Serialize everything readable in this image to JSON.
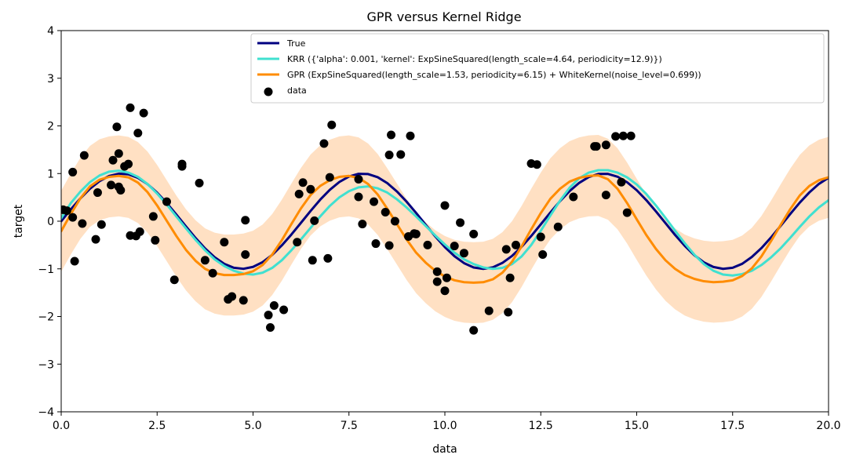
{
  "chart_data": {
    "type": "line",
    "title": "GPR versus Kernel Ridge",
    "xlabel": "data",
    "ylabel": "target",
    "xlim": [
      0,
      20
    ],
    "ylim": [
      -4,
      4
    ],
    "grid": false,
    "legend_placement": "top-right",
    "x_ticks": [
      0,
      2.5,
      5,
      7.5,
      10,
      12.5,
      15,
      17.5,
      20
    ],
    "x_tick_labels": [
      "0.0",
      "2.5",
      "5.0",
      "7.5",
      "10.0",
      "12.5",
      "15.0",
      "17.5",
      "20.0"
    ],
    "y_ticks": [
      -4,
      -3,
      -2,
      -1,
      0,
      1,
      2,
      3,
      4
    ],
    "y_tick_labels": [
      "−4",
      "−3",
      "−2",
      "−1",
      "0",
      "1",
      "2",
      "3",
      "4"
    ],
    "colors": {
      "true": "#000080",
      "krr": "#40e0d0",
      "gpr": "#ff8c00",
      "band": "#ffdab9",
      "data": "#000000"
    },
    "series": [
      {
        "name": "True",
        "kind": "line",
        "color": "#000080",
        "x": [
          0,
          0.25,
          0.5,
          0.75,
          1,
          1.25,
          1.5,
          1.75,
          2,
          2.25,
          2.5,
          2.75,
          3,
          3.25,
          3.5,
          3.75,
          4,
          4.25,
          4.5,
          4.75,
          5,
          5.25,
          5.5,
          5.75,
          6,
          6.25,
          6.5,
          6.75,
          7,
          7.25,
          7.5,
          7.75,
          8,
          8.25,
          8.5,
          8.75,
          9,
          9.25,
          9.5,
          9.75,
          10,
          10.25,
          10.5,
          10.75,
          11,
          11.25,
          11.5,
          11.75,
          12,
          12.25,
          12.5,
          12.75,
          13,
          13.25,
          13.5,
          13.75,
          14,
          14.25,
          14.5,
          14.75,
          15,
          15.25,
          15.5,
          15.75,
          16,
          16.25,
          16.5,
          16.75,
          17,
          17.25,
          17.5,
          17.75,
          18,
          18.25,
          18.5,
          18.75,
          19,
          19.25,
          19.5,
          19.75,
          20
        ],
        "y": [
          0.0,
          0.247,
          0.479,
          0.682,
          0.841,
          0.949,
          0.997,
          0.984,
          0.909,
          0.778,
          0.598,
          0.382,
          0.141,
          -0.108,
          -0.351,
          -0.572,
          -0.757,
          -0.895,
          -0.978,
          -0.999,
          -0.959,
          -0.859,
          -0.706,
          -0.508,
          -0.279,
          -0.033,
          0.215,
          0.451,
          0.657,
          0.823,
          0.938,
          0.994,
          0.989,
          0.923,
          0.798,
          0.624,
          0.412,
          0.174,
          -0.075,
          -0.319,
          -0.544,
          -0.735,
          -0.88,
          -0.971,
          -1.0,
          -0.968,
          -0.875,
          -0.729,
          -0.537,
          -0.311,
          -0.066,
          0.182,
          0.42,
          0.631,
          0.804,
          0.927,
          0.991,
          0.993,
          0.934,
          0.817,
          0.65,
          0.442,
          0.207,
          -0.041,
          -0.288,
          -0.515,
          -0.712,
          -0.863,
          -0.961,
          -1.0,
          -0.977,
          -0.894,
          -0.751,
          -0.565,
          -0.342,
          -0.099,
          0.15,
          0.39,
          0.604,
          0.783,
          0.913
        ]
      },
      {
        "name": "KRR ({'alpha': 0.001, 'kernel': ExpSineSquared(length_scale=4.64, periodicity=12.9)})",
        "kind": "line",
        "color": "#40e0d0",
        "x": [
          0,
          0.25,
          0.5,
          0.75,
          1,
          1.25,
          1.5,
          1.75,
          2,
          2.25,
          2.5,
          2.75,
          3,
          3.25,
          3.5,
          3.75,
          4,
          4.25,
          4.5,
          4.75,
          5,
          5.25,
          5.5,
          5.75,
          6,
          6.25,
          6.5,
          6.75,
          7,
          7.25,
          7.5,
          7.75,
          8,
          8.25,
          8.5,
          8.75,
          9,
          9.25,
          9.5,
          9.75,
          10,
          10.25,
          10.5,
          10.75,
          11,
          11.25,
          11.5,
          11.75,
          12,
          12.25,
          12.5,
          12.75,
          13,
          13.25,
          13.5,
          13.75,
          14,
          14.25,
          14.5,
          14.75,
          15,
          15.25,
          15.5,
          15.75,
          16,
          16.25,
          16.5,
          16.75,
          17,
          17.25,
          17.5,
          17.75,
          18,
          18.25,
          18.5,
          18.75,
          19,
          19.25,
          19.5,
          19.75,
          20
        ],
        "y": [
          0.06,
          0.38,
          0.62,
          0.82,
          0.96,
          1.04,
          1.06,
          1.02,
          0.93,
          0.78,
          0.58,
          0.35,
          0.1,
          -0.15,
          -0.39,
          -0.61,
          -0.8,
          -0.94,
          -1.04,
          -1.1,
          -1.12,
          -1.08,
          -0.98,
          -0.82,
          -0.61,
          -0.38,
          -0.14,
          0.1,
          0.32,
          0.5,
          0.63,
          0.71,
          0.73,
          0.69,
          0.6,
          0.46,
          0.29,
          0.1,
          -0.1,
          -0.3,
          -0.49,
          -0.66,
          -0.8,
          -0.9,
          -0.97,
          -1.0,
          -0.98,
          -0.9,
          -0.74,
          -0.5,
          -0.2,
          0.12,
          0.43,
          0.7,
          0.9,
          1.02,
          1.07,
          1.07,
          1.02,
          0.92,
          0.77,
          0.57,
          0.33,
          0.07,
          -0.2,
          -0.46,
          -0.7,
          -0.9,
          -1.04,
          -1.12,
          -1.14,
          -1.11,
          -1.04,
          -0.92,
          -0.76,
          -0.57,
          -0.35,
          -0.12,
          0.1,
          0.29,
          0.44
        ]
      },
      {
        "name": "GPR (ExpSineSquared(length_scale=1.53, periodicity=6.15) + WhiteKernel(noise_level=0.699))",
        "kind": "line",
        "color": "#ff8c00",
        "x": [
          0,
          0.25,
          0.5,
          0.75,
          1,
          1.25,
          1.5,
          1.75,
          2,
          2.25,
          2.5,
          2.75,
          3,
          3.25,
          3.5,
          3.75,
          4,
          4.25,
          4.5,
          4.75,
          5,
          5.25,
          5.5,
          5.75,
          6,
          6.25,
          6.5,
          6.75,
          7,
          7.25,
          7.5,
          7.75,
          8,
          8.25,
          8.5,
          8.75,
          9,
          9.25,
          9.5,
          9.75,
          10,
          10.25,
          10.5,
          10.75,
          11,
          11.25,
          11.5,
          11.75,
          12,
          12.25,
          12.5,
          12.75,
          13,
          13.25,
          13.5,
          13.75,
          14,
          14.25,
          14.5,
          14.75,
          15,
          15.25,
          15.5,
          15.75,
          16,
          16.25,
          16.5,
          16.75,
          17,
          17.25,
          17.5,
          17.75,
          18,
          18.25,
          18.5,
          18.75,
          19,
          19.25,
          19.5,
          19.75,
          20
        ],
        "y": [
          -0.21,
          0.15,
          0.48,
          0.73,
          0.87,
          0.93,
          0.95,
          0.92,
          0.81,
          0.61,
          0.33,
          0.01,
          -0.31,
          -0.6,
          -0.83,
          -1.0,
          -1.09,
          -1.13,
          -1.13,
          -1.11,
          -1.05,
          -0.92,
          -0.7,
          -0.4,
          -0.06,
          0.27,
          0.55,
          0.74,
          0.86,
          0.93,
          0.95,
          0.91,
          0.78,
          0.56,
          0.26,
          -0.06,
          -0.38,
          -0.66,
          -0.87,
          -1.04,
          -1.16,
          -1.24,
          -1.28,
          -1.29,
          -1.28,
          -1.22,
          -1.08,
          -0.85,
          -0.53,
          -0.17,
          0.17,
          0.47,
          0.68,
          0.83,
          0.91,
          0.95,
          0.96,
          0.88,
          0.68,
          0.38,
          0.04,
          -0.29,
          -0.58,
          -0.82,
          -1.0,
          -1.13,
          -1.21,
          -1.26,
          -1.28,
          -1.27,
          -1.24,
          -1.15,
          -0.99,
          -0.74,
          -0.42,
          -0.08,
          0.25,
          0.54,
          0.74,
          0.86,
          0.92
        ]
      },
      {
        "name": "data",
        "kind": "scatter",
        "color": "#000000",
        "points": [
          [
            0.05,
            0.24
          ],
          [
            0.15,
            0.22
          ],
          [
            0.3,
            1.03
          ],
          [
            0.3,
            0.08
          ],
          [
            0.35,
            -0.84
          ],
          [
            0.55,
            -0.05
          ],
          [
            0.6,
            1.38
          ],
          [
            0.9,
            -0.38
          ],
          [
            0.95,
            0.6
          ],
          [
            1.05,
            -0.07
          ],
          [
            1.3,
            0.76
          ],
          [
            1.35,
            1.28
          ],
          [
            1.45,
            1.98
          ],
          [
            1.5,
            1.42
          ],
          [
            1.5,
            0.72
          ],
          [
            1.55,
            0.65
          ],
          [
            1.65,
            1.15
          ],
          [
            1.75,
            1.2
          ],
          [
            1.8,
            2.38
          ],
          [
            1.8,
            -0.3
          ],
          [
            1.95,
            -0.31
          ],
          [
            2.0,
            1.85
          ],
          [
            2.05,
            -0.22
          ],
          [
            2.15,
            2.27
          ],
          [
            2.4,
            0.1
          ],
          [
            2.45,
            -0.4
          ],
          [
            2.75,
            0.41
          ],
          [
            2.95,
            -1.23
          ],
          [
            3.15,
            1.15
          ],
          [
            3.15,
            1.2
          ],
          [
            3.6,
            0.8
          ],
          [
            3.75,
            -0.82
          ],
          [
            3.95,
            -1.09
          ],
          [
            4.25,
            -0.44
          ],
          [
            4.35,
            -1.64
          ],
          [
            4.45,
            -1.58
          ],
          [
            4.75,
            -1.66
          ],
          [
            4.8,
            0.02
          ],
          [
            4.8,
            -0.7
          ],
          [
            5.4,
            -1.97
          ],
          [
            5.45,
            -2.23
          ],
          [
            5.55,
            -1.77
          ],
          [
            5.8,
            -1.86
          ],
          [
            6.15,
            -0.44
          ],
          [
            6.2,
            0.57
          ],
          [
            6.3,
            0.81
          ],
          [
            6.5,
            0.67
          ],
          [
            6.55,
            -0.82
          ],
          [
            6.6,
            0.01
          ],
          [
            6.85,
            1.63
          ],
          [
            6.95,
            -0.78
          ],
          [
            7.0,
            0.92
          ],
          [
            7.05,
            2.02
          ],
          [
            7.75,
            0.51
          ],
          [
            7.75,
            0.88
          ],
          [
            7.85,
            -0.06
          ],
          [
            8.15,
            0.41
          ],
          [
            8.2,
            -0.47
          ],
          [
            8.45,
            0.19
          ],
          [
            8.55,
            -0.51
          ],
          [
            8.55,
            1.39
          ],
          [
            8.6,
            1.81
          ],
          [
            8.7,
            0.0
          ],
          [
            8.85,
            1.4
          ],
          [
            9.05,
            -0.32
          ],
          [
            9.1,
            1.79
          ],
          [
            9.2,
            -0.26
          ],
          [
            9.25,
            -0.27
          ],
          [
            9.55,
            -0.5
          ],
          [
            9.8,
            -1.06
          ],
          [
            9.8,
            -1.27
          ],
          [
            10.0,
            0.33
          ],
          [
            10.0,
            -1.46
          ],
          [
            10.05,
            -1.19
          ],
          [
            10.25,
            -0.52
          ],
          [
            10.4,
            -0.03
          ],
          [
            10.5,
            -0.67
          ],
          [
            10.75,
            -0.27
          ],
          [
            10.75,
            -2.29
          ],
          [
            11.15,
            -1.88
          ],
          [
            11.6,
            -0.59
          ],
          [
            11.65,
            -1.91
          ],
          [
            11.7,
            -1.19
          ],
          [
            11.85,
            -0.5
          ],
          [
            12.25,
            1.21
          ],
          [
            12.4,
            1.19
          ],
          [
            12.5,
            -0.33
          ],
          [
            12.55,
            -0.7
          ],
          [
            12.95,
            -0.12
          ],
          [
            13.35,
            0.51
          ],
          [
            13.9,
            1.57
          ],
          [
            13.95,
            1.57
          ],
          [
            14.2,
            1.6
          ],
          [
            14.2,
            0.55
          ],
          [
            14.45,
            1.78
          ],
          [
            14.6,
            0.82
          ],
          [
            14.65,
            1.79
          ],
          [
            14.75,
            0.18
          ],
          [
            14.85,
            1.79
          ]
        ]
      }
    ],
    "band": {
      "name": "GPR",
      "color": "#ffdab9",
      "half_width": 0.85
    }
  }
}
